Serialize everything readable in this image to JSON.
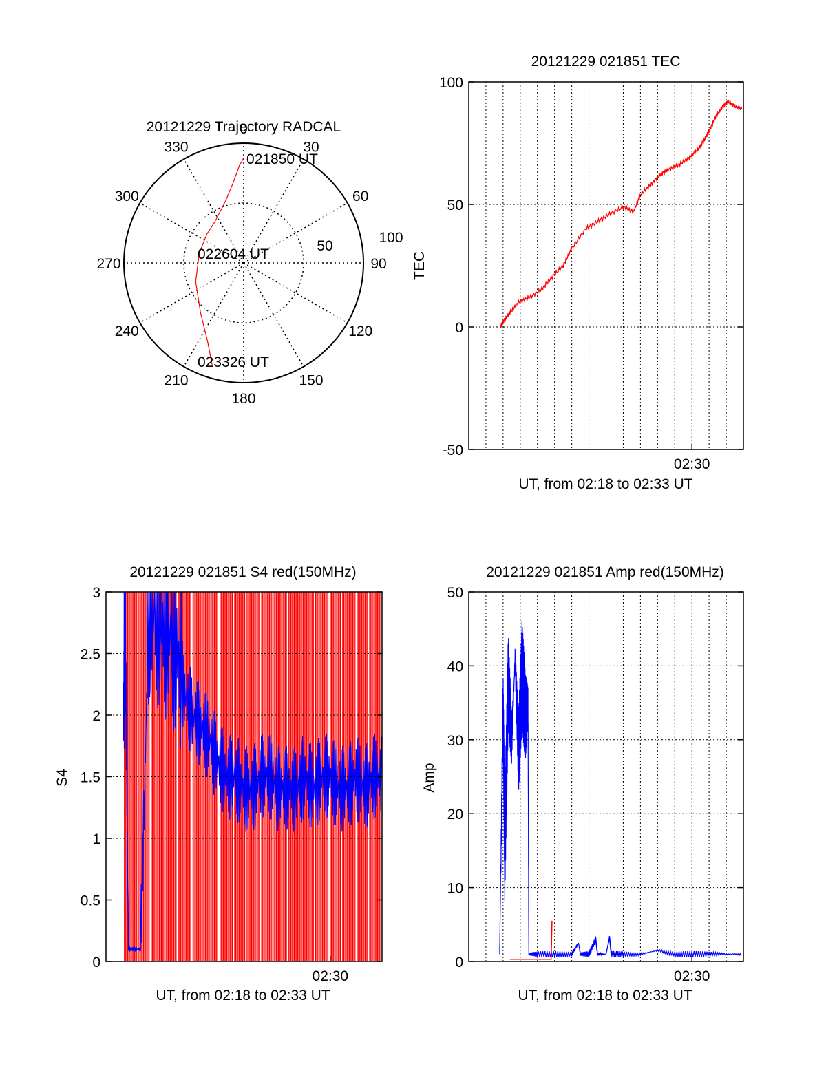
{
  "chart_data": [
    {
      "id": "polar",
      "type": "scatter",
      "projection": "polar",
      "title": "20121229 Trajectory RADCAL",
      "azimuth_labels": [
        "0",
        "30",
        "60",
        "90",
        "120",
        "150",
        "180",
        "210",
        "240",
        "270",
        "300",
        "330"
      ],
      "azimuth_ticks": [
        0,
        30,
        60,
        90,
        120,
        150,
        180,
        210,
        240,
        270,
        300,
        330
      ],
      "radial_labels": [
        "50",
        "100"
      ],
      "radial_ticks": [
        50,
        100
      ],
      "radial_range": [
        0,
        100
      ],
      "grid": true,
      "annotations": [
        {
          "text": "021850 UT",
          "az": 0,
          "r": 88
        },
        {
          "text": "022604 UT",
          "az": 0,
          "r": 0
        },
        {
          "text": "023326 UT",
          "az": 197,
          "r": 88
        }
      ],
      "series": [
        {
          "color": "#ff0000",
          "az": [
            0,
            -2.6,
            -7.5,
            -16.2,
            -34.9,
            -52.0,
            -77.4,
            -111.4,
            -139.1,
            -155.2,
            -163.0
          ],
          "r": [
            87.6,
            81.2,
            67.5,
            54.0,
            42.0,
            39.0,
            38.0,
            43.0,
            55.0,
            72.0,
            89.6
          ]
        }
      ]
    },
    {
      "id": "tec",
      "type": "line",
      "title": "20121229 021851 TEC",
      "ylabel": "TEC",
      "xlabel": "UT, from 02:18 to 02:33 UT",
      "x_tick_labels": [
        "02:30"
      ],
      "x_tick_positions": [
        30
      ],
      "x_range": [
        17,
        33
      ],
      "ylim": [
        -50,
        100
      ],
      "y_ticks": [
        -50,
        0,
        50,
        100
      ],
      "x_grid": [
        18,
        19,
        20,
        21,
        22,
        23,
        24,
        25,
        26,
        27,
        28,
        29,
        30,
        31,
        32,
        33
      ],
      "grid": true,
      "series": [
        {
          "color": "#ff0000",
          "x": [
            18.85,
            19.0,
            19.4,
            19.9,
            20.5,
            21.2,
            21.8,
            22.5,
            23.0,
            23.8,
            24.5,
            25.2,
            26.0,
            26.6,
            27.0,
            27.6,
            28.1,
            28.6,
            29.2,
            29.8,
            30.3,
            30.7,
            31.0,
            31.4,
            31.8,
            32.1,
            32.5,
            32.9
          ],
          "y": [
            0,
            2,
            6,
            10,
            12,
            15,
            20,
            25,
            32,
            40,
            43,
            46,
            49,
            47,
            54,
            58,
            62,
            64,
            66,
            69,
            72,
            76,
            80,
            86,
            90,
            92,
            90,
            89
          ]
        }
      ]
    },
    {
      "id": "s4",
      "type": "line",
      "title": "20121229 021851 S4 red(150MHz)",
      "ylabel": "S4",
      "xlabel": "UT, from 02:18 to 02:33 UT",
      "x_tick_labels": [
        "02:30"
      ],
      "x_tick_positions": [
        30
      ],
      "x_range": [
        17,
        33
      ],
      "ylim": [
        0,
        3
      ],
      "y_ticks": [
        0,
        0.5,
        1,
        1.5,
        2,
        2.5,
        3
      ],
      "y_tick_labels": [
        "0",
        "0.5",
        "1",
        "1.5",
        "2",
        "2.5",
        "3"
      ],
      "grid": true,
      "series": [
        {
          "color": "#ff0000",
          "style": "dense vertical spikes 0–3 across 02:18–02:33"
        },
        {
          "color": "#0000ff",
          "x": [
            18.0,
            18.1,
            18.3,
            18.5,
            19.0,
            19.5,
            20.0,
            20.5,
            21.0,
            21.5,
            22.0,
            22.5,
            23.0,
            23.5,
            24.0,
            24.5,
            25.0,
            25.5,
            26.0,
            26.5,
            27.0,
            27.5,
            28.0,
            28.5,
            29.0,
            29.5,
            30.0,
            30.5,
            31.0,
            31.5,
            32.0,
            32.5,
            33.0
          ],
          "y": [
            1.8,
            2.9,
            0.1,
            0.1,
            0.1,
            2.9,
            2.8,
            2.7,
            2.6,
            2.2,
            2.0,
            1.9,
            1.8,
            1.6,
            1.5,
            1.5,
            1.4,
            1.4,
            1.5,
            1.5,
            1.4,
            1.4,
            1.4,
            1.5,
            1.4,
            1.5,
            1.5,
            1.4,
            1.4,
            1.5,
            1.4,
            1.5,
            1.5
          ]
        }
      ]
    },
    {
      "id": "amp",
      "type": "line",
      "title": "20121229 021851 Amp red(150MHz)",
      "ylabel": "Amp",
      "xlabel": "UT, from 02:18 to 02:33 UT",
      "x_tick_labels": [
        "02:30"
      ],
      "x_tick_positions": [
        30
      ],
      "x_range": [
        17,
        33
      ],
      "ylim": [
        0,
        50
      ],
      "y_ticks": [
        0,
        10,
        20,
        30,
        40,
        50
      ],
      "x_grid": [
        18,
        19,
        20,
        21,
        22,
        23,
        24,
        25,
        26,
        27,
        28,
        29,
        30,
        31,
        32,
        33
      ],
      "grid": true,
      "series": [
        {
          "color": "#0000ff",
          "x": [
            18.8,
            19.0,
            19.1,
            19.3,
            19.5,
            19.7,
            19.9,
            20.1,
            20.3,
            20.45,
            20.5,
            21.0,
            22.0,
            23.0,
            23.4,
            23.5,
            24.0,
            24.4,
            24.5,
            25.0,
            25.2,
            25.3,
            26.0,
            27.0,
            28.0,
            29.0,
            30.0,
            31.0,
            32.0,
            32.9
          ],
          "y": [
            1,
            35,
            15,
            38,
            30,
            41,
            28,
            39,
            33,
            35,
            1,
            1,
            1,
            1,
            2.5,
            1,
            1,
            3,
            1,
            1,
            3.3,
            1,
            1,
            1,
            1.5,
            1,
            1,
            1,
            1,
            1
          ]
        },
        {
          "color": "#ff0000",
          "x": [
            19.4,
            20.3,
            20.45,
            21.6,
            21.8,
            21.85
          ],
          "y": [
            0.3,
            0.3,
            0.3,
            0.3,
            0.3,
            5.5
          ]
        }
      ]
    }
  ]
}
